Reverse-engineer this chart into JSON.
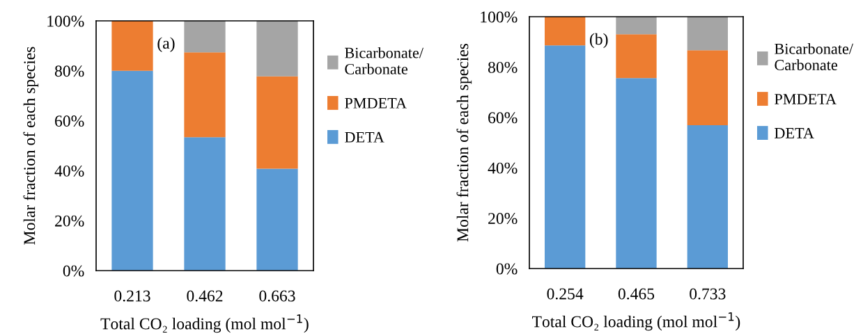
{
  "chart_data": [
    {
      "type": "bar",
      "stacked": true,
      "categories": [
        "0.213",
        "0.462",
        "0.663"
      ],
      "xlabel": "Total CO₂ loading (mol mol$^{−1}$)",
      "ylabel": "Molar fraction of each species",
      "ylim": [
        0,
        100
      ],
      "yticks": [
        {
          "value": 0,
          "label": "0%"
        },
        {
          "value": 20,
          "label": "20%"
        },
        {
          "value": 40,
          "label": "40%"
        },
        {
          "value": 60,
          "label": "60%"
        },
        {
          "value": 80,
          "label": "80%"
        },
        {
          "value": 100,
          "label": "100%"
        }
      ],
      "grid": false,
      "legend": "right",
      "annotations": [
        "(a)"
      ],
      "series": [
        {
          "name": "DETA",
          "color": "#5b9bd5",
          "values": [
            80,
            53.4,
            40.8
          ]
        },
        {
          "name": "PMDETA",
          "color": "#ed7d31",
          "values": [
            20,
            34.0,
            37.0
          ]
        },
        {
          "name": "Bicarbonate/\nCarbonate",
          "color": "#a5a5a5",
          "values": [
            0,
            12.6,
            22.2
          ]
        }
      ]
    },
    {
      "type": "bar",
      "stacked": true,
      "categories": [
        "0.254",
        "0.465",
        "0.733"
      ],
      "xlabel": "Total CO₂ loading (mol mol$^{−1}$)",
      "ylabel": "Molar fraction of each species",
      "ylim": [
        0,
        100
      ],
      "yticks": [
        {
          "value": 0,
          "label": "0%"
        },
        {
          "value": 20,
          "label": "20%"
        },
        {
          "value": 40,
          "label": "40%"
        },
        {
          "value": 60,
          "label": "60%"
        },
        {
          "value": 80,
          "label": "80%"
        },
        {
          "value": 100,
          "label": "100%"
        }
      ],
      "grid": false,
      "legend": "right",
      "annotations": [
        "(b)"
      ],
      "series": [
        {
          "name": "DETA",
          "color": "#5b9bd5",
          "values": [
            88.6,
            75.6,
            56.9
          ]
        },
        {
          "name": "PMDETA",
          "color": "#ed7d31",
          "values": [
            11.4,
            17.4,
            29.8
          ]
        },
        {
          "name": "Bicarbonate/\nCarbonate",
          "color": "#a5a5a5",
          "values": [
            0,
            7.0,
            13.3
          ]
        }
      ]
    }
  ]
}
